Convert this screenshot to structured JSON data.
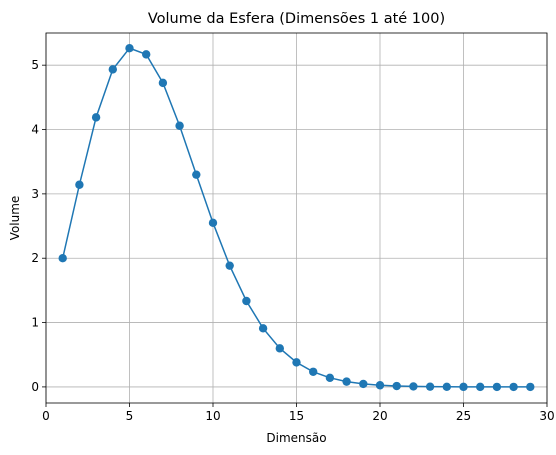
{
  "chart_data": {
    "type": "line",
    "title": "Volume da Esfera (Dimensões 1 até 100)",
    "xlabel": "Dimensão",
    "ylabel": "Volume",
    "xlim": [
      0,
      30
    ],
    "ylim": [
      -0.25,
      5.5
    ],
    "xticks": [
      0,
      5,
      10,
      15,
      20,
      25,
      30
    ],
    "yticks": [
      0,
      1,
      2,
      3,
      4,
      5
    ],
    "grid": true,
    "marker": "circle",
    "color": "#1f77b4",
    "series": [
      {
        "x": [
          1,
          2,
          3,
          4,
          5,
          6,
          7,
          8,
          9,
          10,
          11,
          12,
          13,
          14,
          15,
          16,
          17,
          18,
          19,
          20,
          21,
          22,
          23,
          24,
          25,
          26,
          27,
          28,
          29
        ],
        "values": [
          2.0,
          3.1416,
          4.1888,
          4.9348,
          5.2638,
          5.1677,
          4.7248,
          4.0587,
          3.2985,
          2.5502,
          1.8841,
          1.3353,
          0.9106,
          0.5993,
          0.3814,
          0.2353,
          0.141,
          0.0821,
          0.0466,
          0.0258,
          0.0139,
          0.0074,
          0.0038,
          0.0019,
          0.001,
          0.0005,
          0.0002,
          0.0001,
          0.0001
        ]
      }
    ]
  }
}
